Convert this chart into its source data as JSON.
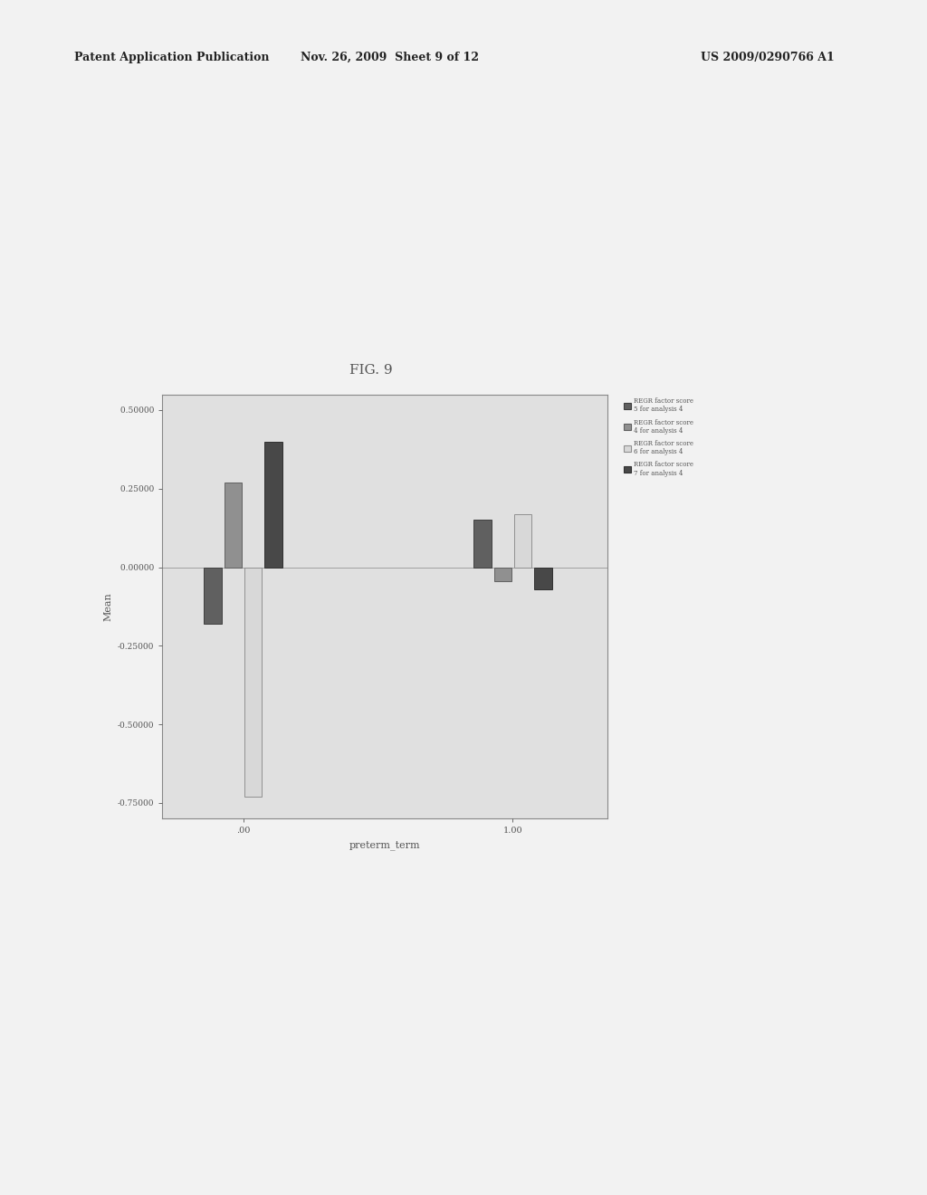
{
  "title": "FIG. 9",
  "xlabel": "preterm_term",
  "ylabel": "Mean",
  "page_bg_color": "#f2f2f2",
  "plot_bg_color": "#e0e0e0",
  "ylim": [
    -0.8,
    0.55
  ],
  "yticks": [
    -0.75,
    -0.5,
    -0.25,
    0.0,
    0.25,
    0.5
  ],
  "xtick_labels": [
    ".00",
    "1.00"
  ],
  "xtick_positions": [
    0.0,
    1.0
  ],
  "groups": [
    0.0,
    1.0
  ],
  "series": [
    {
      "name": "REGR factor score\n5 for analysis 4",
      "color": "#606060",
      "edgecolor": "#404040",
      "values": [
        -0.18,
        0.15
      ]
    },
    {
      "name": "REGR factor score\n4 for analysis 4",
      "color": "#909090",
      "edgecolor": "#606060",
      "values": [
        0.27,
        -0.045
      ]
    },
    {
      "name": "REGR factor score\n6 for analysis 4",
      "color": "#d8d8d8",
      "edgecolor": "#909090",
      "values": [
        -0.73,
        0.17
      ]
    },
    {
      "name": "REGR factor score\n7 for analysis 4",
      "color": "#484848",
      "edgecolor": "#303030",
      "values": [
        0.4,
        -0.07
      ]
    }
  ],
  "bar_width": 0.065,
  "header_left": "Patent Application Publication",
  "header_mid": "Nov. 26, 2009  Sheet 9 of 12",
  "header_right": "US 2009/0290766 A1"
}
